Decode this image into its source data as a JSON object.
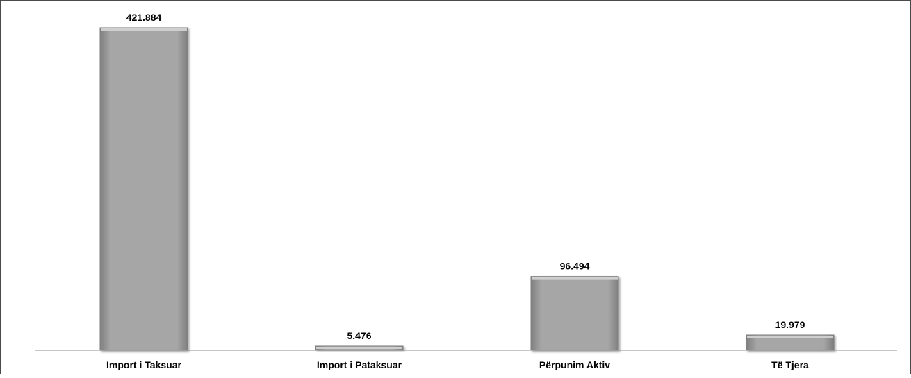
{
  "chart_data": {
    "type": "bar",
    "categories": [
      "Import i Taksuar",
      "Import i Pataksuar",
      "Përpunim Aktiv",
      "Të Tjera"
    ],
    "values": [
      421.884,
      5.476,
      96.494,
      19.979
    ],
    "data_labels": [
      "421.884",
      "5.476",
      "96.494",
      "19.979"
    ],
    "title": "",
    "xlabel": "",
    "ylabel": "",
    "ylim": [
      0,
      430
    ],
    "grid": false,
    "legend": "none",
    "colors": {
      "bar_fill": "#a6a6a6",
      "bar_highlight": "#cfcfcf",
      "bar_edge": "#7f7f7f",
      "axis": "#8c8c8c",
      "text": "#000000"
    }
  }
}
